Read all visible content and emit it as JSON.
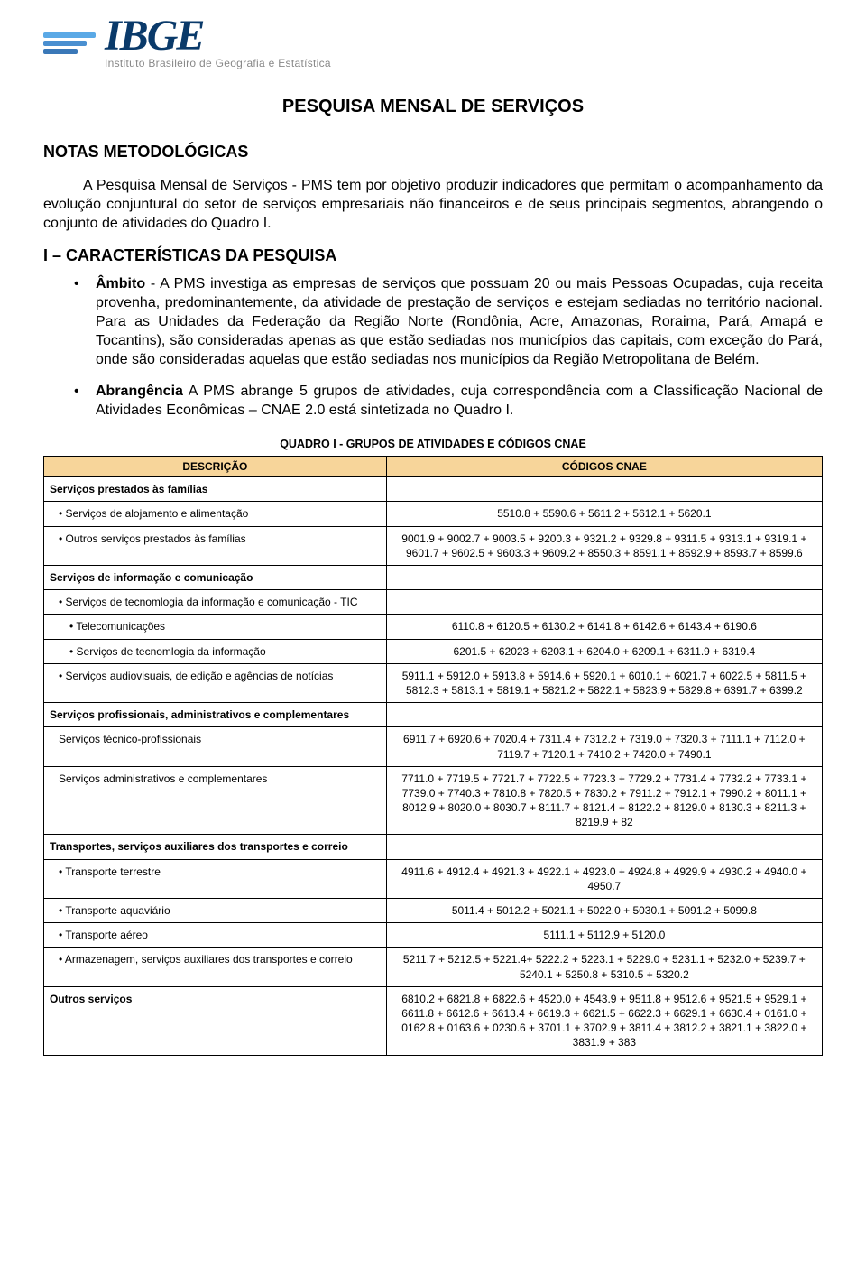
{
  "logo": {
    "stripe_color_1": "#5aa9e6",
    "stripe_color_2": "#4a8fd0",
    "stripe_color_3": "#3a78b8",
    "text": "IBGE",
    "subtitle": "Instituto Brasileiro de Geografia e Estatística",
    "text_color": "#0a3a6a",
    "sub_color": "#888888"
  },
  "title": "PESQUISA MENSAL DE SERVIÇOS",
  "section1": {
    "heading": "NOTAS METODOLÓGICAS",
    "para": "A Pesquisa Mensal de Serviços - PMS tem por objetivo produzir indicadores que permitam o acompanhamento da evolução conjuntural do setor de serviços empresariais não financeiros e de seus principais segmentos, abrangendo o conjunto de atividades do Quadro I."
  },
  "section2": {
    "heading": "I – CARACTERÍSTICAS DA PESQUISA",
    "item1_lead": "Âmbito",
    "item1_body": " - A PMS investiga as empresas de serviços que possuam 20 ou mais Pessoas Ocupadas, cuja receita provenha, predominantemente, da atividade de prestação de serviços e estejam sediadas no território nacional. Para as Unidades da Federação da Região Norte (Rondônia, Acre, Amazonas, Roraima, Pará, Amapá e Tocantins), são consideradas apenas as que estão sediadas nos municípios das capitais, com exceção do Pará, onde são consideradas aquelas que estão sediadas nos municípios da Região Metropolitana de Belém.",
    "item2_lead": "Abrangência",
    "item2_body": " A PMS abrange 5 grupos de atividades, cuja correspondência com a Classificação Nacional de Atividades Econômicas – CNAE 2.0 está sintetizada no Quadro I."
  },
  "table": {
    "caption": "QUADRO I - GRUPOS DE ATIVIDADES E CÓDIGOS CNAE",
    "header_desc": "DESCRIÇÃO",
    "header_codes": "CÓDIGOS CNAE",
    "header_bg": "#f7d59a",
    "rows": [
      {
        "desc_class": "grp",
        "desc": "Serviços prestados às famílias",
        "codes": ""
      },
      {
        "desc_class": "dot ind1",
        "desc": "Serviços de alojamento e alimentação",
        "codes": "5510.8 + 5590.6 + 5611.2 + 5612.1 + 5620.1"
      },
      {
        "desc_class": "dot ind1",
        "desc": "Outros serviços prestados às famílias",
        "codes": "9001.9 + 9002.7 + 9003.5 + 9200.3 + 9321.2 + 9329.8 + 9311.5 + 9313.1 + 9319.1 + 9601.7 + 9602.5 + 9603.3 + 9609.2 + 8550.3 + 8591.1 + 8592.9 + 8593.7 + 8599.6"
      },
      {
        "desc_class": "grp",
        "desc": "Serviços de informação e comunicação",
        "codes": ""
      },
      {
        "desc_class": "dot ind1",
        "desc": "Serviços de tecnomlogia da informação e comunicação - TIC",
        "codes": ""
      },
      {
        "desc_class": "dot ind2",
        "desc": "Telecomunicações",
        "codes": "6110.8 + 6120.5 + 6130.2 + 6141.8 + 6142.6 + 6143.4 + 6190.6"
      },
      {
        "desc_class": "dot ind2",
        "desc": "Serviços de tecnomlogia da informação",
        "codes": "6201.5 + 62023 + 6203.1 + 6204.0 + 6209.1 + 6311.9 + 6319.4"
      },
      {
        "desc_class": "dot ind1",
        "desc": "Serviços audiovisuais, de edição e agências de notícias",
        "codes": "5911.1 + 5912.0 + 5913.8 + 5914.6 + 5920.1 + 6010.1 + 6021.7 + 6022.5 + 5811.5 + 5812.3 + 5813.1 + 5819.1 + 5821.2 + 5822.1 + 5823.9 + 5829.8 + 6391.7 + 6399.2"
      },
      {
        "desc_class": "grp",
        "desc": "Serviços profissionais, administrativos e complementares",
        "codes": ""
      },
      {
        "desc_class": "ind1",
        "desc": "Serviços técnico-profissionais",
        "codes": "6911.7 + 6920.6 + 7020.4 +  7311.4 + 7312.2 + 7319.0 + 7320.3 + 7111.1 + 7112.0 + 7119.7 + 7120.1 + 7410.2 + 7420.0 + 7490.1"
      },
      {
        "desc_class": "ind1",
        "desc": "Serviços administrativos e complementares",
        "codes": "7711.0 + 7719.5 + 7721.7 + 7722.5 + 7723.3 + 7729.2 + 7731.4 +  7732.2 + 7733.1 + 7739.0 + 7740.3 + 7810.8 + 7820.5 + 7830.2 + 7911.2 + 7912.1 + 7990.2 + 8011.1 + 8012.9 + 8020.0 + 8030.7 + 8111.7 + 8121.4 + 8122.2 + 8129.0 + 8130.3 + 8211.3 + 8219.9 + 82"
      },
      {
        "desc_class": "grp",
        "desc": "Transportes, serviços auxiliares dos transportes e correio",
        "codes": ""
      },
      {
        "desc_class": "dot ind1",
        "desc": "Transporte terrestre",
        "codes": "4911.6 + 4912.4 + 4921.3 + 4922.1 + 4923.0 + 4924.8 + 4929.9 + 4930.2 + 4940.0 + 4950.7"
      },
      {
        "desc_class": "dot ind1",
        "desc": "Transporte aquaviário",
        "codes": "5011.4 + 5012.2 + 5021.1 + 5022.0 + 5030.1 + 5091.2 + 5099.8"
      },
      {
        "desc_class": "dot ind1",
        "desc": "Transporte aéreo",
        "codes": "5111.1 + 5112.9 + 5120.0"
      },
      {
        "desc_class": "dot ind1",
        "desc": "Armazenagem, serviços auxiliares dos transportes e correio",
        "codes": "5211.7 + 5212.5 + 5221.4+ 5222.2 + 5223.1 + 5229.0 + 5231.1 + 5232.0 + 5239.7 + 5240.1 + 5250.8 + 5310.5 + 5320.2"
      },
      {
        "desc_class": "grp",
        "desc": "Outros serviços",
        "codes": "6810.2 + 6821.8 + 6822.6 + 4520.0 + 4543.9 + 9511.8 + 9512.6 + 9521.5 + 9529.1 + 6611.8 + 6612.6 + 6613.4 + 6619.3 + 6621.5 + 6622.3 + 6629.1 + 6630.4 + 0161.0 + 0162.8 + 0163.6 + 0230.6 + 3701.1 + 3702.9 + 3811.4 + 3812.2 + 3821.1 + 3822.0 + 3831.9 + 383"
      }
    ]
  }
}
